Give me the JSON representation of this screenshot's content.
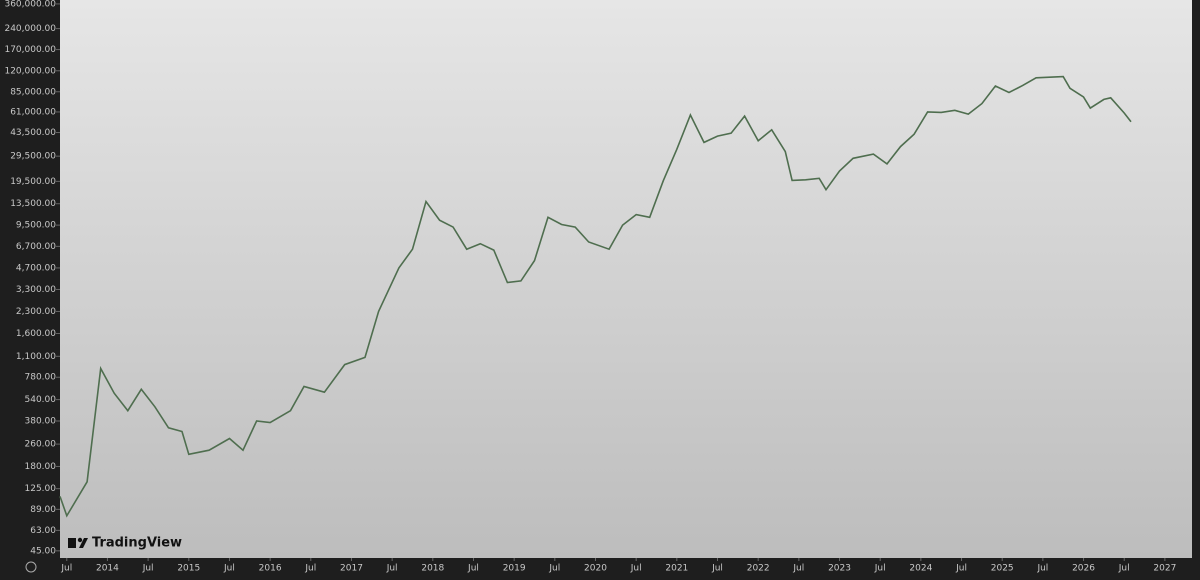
{
  "chart_data": {
    "type": "line",
    "log_scale": true,
    "color": "#4f6e4f",
    "logo": "TradingView",
    "x": [
      "2013-06",
      "2013-07",
      "2013-10",
      "2013-12",
      "2014-02",
      "2014-04",
      "2014-06",
      "2014-08",
      "2014-10",
      "2014-12",
      "2015-01",
      "2015-04",
      "2015-07",
      "2015-09",
      "2015-11",
      "2016-01",
      "2016-04",
      "2016-06",
      "2016-09",
      "2016-12",
      "2017-03",
      "2017-05",
      "2017-08",
      "2017-10",
      "2017-12",
      "2018-02",
      "2018-04",
      "2018-06",
      "2018-08",
      "2018-10",
      "2018-12",
      "2019-02",
      "2019-04",
      "2019-06",
      "2019-08",
      "2019-10",
      "2019-12",
      "2020-03",
      "2020-05",
      "2020-07",
      "2020-09",
      "2020-11",
      "2021-01",
      "2021-03",
      "2021-05",
      "2021-07",
      "2021-09",
      "2021-11",
      "2022-01",
      "2022-03",
      "2022-05",
      "2022-06",
      "2022-08",
      "2022-10",
      "2022-11",
      "2023-01",
      "2023-03",
      "2023-06",
      "2023-08",
      "2023-10",
      "2023-12",
      "2024-02",
      "2024-04",
      "2024-06",
      "2024-08",
      "2024-10",
      "2024-12",
      "2025-02",
      "2025-04",
      "2025-06",
      "2025-08",
      "2025-10",
      "2025-11",
      "2026-01",
      "2026-02",
      "2026-04",
      "2026-05",
      "2026-07",
      "2026-08"
    ],
    "values": [
      110,
      80,
      140,
      900,
      600,
      450,
      640,
      480,
      340,
      320,
      220,
      235,
      285,
      235,
      380,
      370,
      450,
      670,
      610,
      960,
      1080,
      2300,
      4700,
      6400,
      14000,
      10300,
      9200,
      6400,
      7000,
      6300,
      3700,
      3800,
      5300,
      10800,
      9600,
      9200,
      7200,
      6400,
      9500,
      11300,
      10800,
      19700,
      33000,
      58000,
      37000,
      41000,
      43000,
      57000,
      38000,
      45500,
      31800,
      19800,
      20000,
      20500,
      17000,
      23100,
      28500,
      30500,
      26000,
      34500,
      42300,
      61000,
      60600,
      62700,
      58900,
      70000,
      93400,
      84000,
      94000,
      107000,
      108000,
      109000,
      90000,
      78000,
      65000,
      75000,
      77000,
      60000,
      52000
    ],
    "xlim": [
      "2013-06",
      "2027-05"
    ],
    "xticks": [
      {
        "value": "2013-07",
        "label": "Jul"
      },
      {
        "value": "2014-01",
        "label": "2014"
      },
      {
        "value": "2014-07",
        "label": "Jul"
      },
      {
        "value": "2015-01",
        "label": "2015"
      },
      {
        "value": "2015-07",
        "label": "Jul"
      },
      {
        "value": "2016-01",
        "label": "2016"
      },
      {
        "value": "2016-07",
        "label": "Jul"
      },
      {
        "value": "2017-01",
        "label": "2017"
      },
      {
        "value": "2017-07",
        "label": "Jul"
      },
      {
        "value": "2018-01",
        "label": "2018"
      },
      {
        "value": "2018-07",
        "label": "Jul"
      },
      {
        "value": "2019-01",
        "label": "2019"
      },
      {
        "value": "2019-07",
        "label": "Jul"
      },
      {
        "value": "2020-01",
        "label": "2020"
      },
      {
        "value": "2020-07",
        "label": "Jul"
      },
      {
        "value": "2021-01",
        "label": "2021"
      },
      {
        "value": "2021-07",
        "label": "Jul"
      },
      {
        "value": "2022-01",
        "label": "2022"
      },
      {
        "value": "2022-07",
        "label": "Jul"
      },
      {
        "value": "2023-01",
        "label": "2023"
      },
      {
        "value": "2023-07",
        "label": "Jul"
      },
      {
        "value": "2024-01",
        "label": "2024"
      },
      {
        "value": "2024-07",
        "label": "Jul"
      },
      {
        "value": "2025-01",
        "label": "2025"
      },
      {
        "value": "2025-07",
        "label": "Jul"
      },
      {
        "value": "2026-01",
        "label": "2026"
      },
      {
        "value": "2026-07",
        "label": "Jul"
      },
      {
        "value": "2027-01",
        "label": "2027"
      }
    ],
    "ylim": [
      40,
      384000
    ],
    "yticks": [
      {
        "value": 360000,
        "label": "360,000.00"
      },
      {
        "value": 240000,
        "label": "240,000.00"
      },
      {
        "value": 170000,
        "label": "170,000.00"
      },
      {
        "value": 120000,
        "label": "120,000.00"
      },
      {
        "value": 85000,
        "label": "85,000.00"
      },
      {
        "value": 61000,
        "label": "61,000.00"
      },
      {
        "value": 43500,
        "label": "43,500.00"
      },
      {
        "value": 29500,
        "label": "29,500.00"
      },
      {
        "value": 19500,
        "label": "19,500.00"
      },
      {
        "value": 13500,
        "label": "13,500.00"
      },
      {
        "value": 9500,
        "label": "9,500.00"
      },
      {
        "value": 6700,
        "label": "6,700.00"
      },
      {
        "value": 4700,
        "label": "4,700.00"
      },
      {
        "value": 3300,
        "label": "3,300.00"
      },
      {
        "value": 2300,
        "label": "2,300.00"
      },
      {
        "value": 1600,
        "label": "1,600.00"
      },
      {
        "value": 1100,
        "label": "1,100.00"
      },
      {
        "value": 780,
        "label": "780.00"
      },
      {
        "value": 540,
        "label": "540.00"
      },
      {
        "value": 380,
        "label": "380.00"
      },
      {
        "value": 260,
        "label": "260.00"
      },
      {
        "value": 180,
        "label": "180.00"
      },
      {
        "value": 125,
        "label": "125.00"
      },
      {
        "value": 89,
        "label": "89.00"
      },
      {
        "value": 63,
        "label": "63.00"
      },
      {
        "value": 45,
        "label": "45.00"
      }
    ]
  }
}
